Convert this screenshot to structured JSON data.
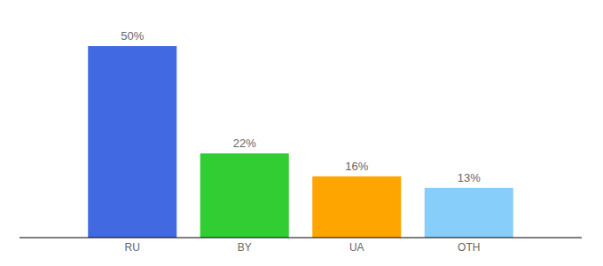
{
  "chart_data": {
    "type": "bar",
    "categories": [
      "RU",
      "BY",
      "UA",
      "OTH"
    ],
    "values": [
      50,
      22,
      16,
      13
    ],
    "value_labels": [
      "50%",
      "22%",
      "16%",
      "13%"
    ],
    "colors": [
      "#4169e1",
      "#32cd32",
      "#ffa500",
      "#87cefa"
    ],
    "ylim": [
      0,
      60
    ],
    "data_labels": true,
    "tick_labels": "x",
    "grid": false
  }
}
